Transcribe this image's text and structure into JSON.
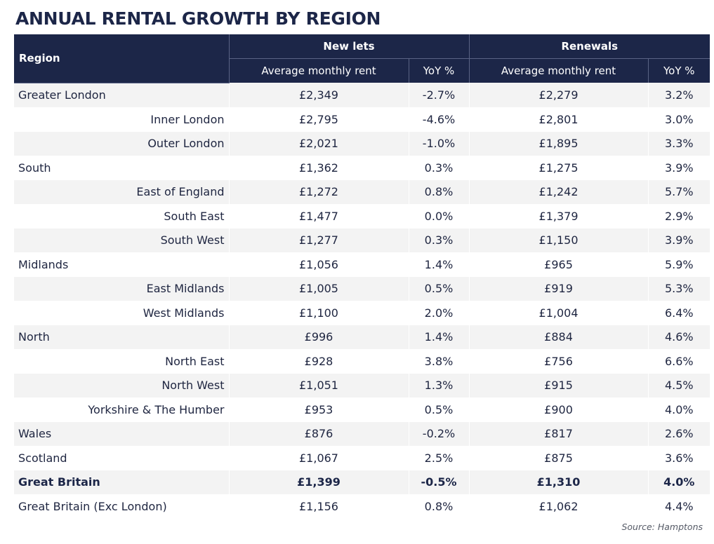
{
  "title": "ANNUAL RENTAL GROWTH BY REGION",
  "header": {
    "region": "Region",
    "new_lets": "New lets",
    "renewals": "Renewals",
    "avg_rent": "Average monthly rent",
    "yoy": "YoY %"
  },
  "rows": [
    {
      "region": "Greater London",
      "nl_rent": "£2,349",
      "nl_yoy": "-2.7%",
      "rn_rent": "£2,279",
      "rn_yoy": "3.2%"
    },
    {
      "region": "Inner London",
      "nl_rent": "£2,795",
      "nl_yoy": "-4.6%",
      "rn_rent": "£2,801",
      "rn_yoy": "3.0%"
    },
    {
      "region": "Outer London",
      "nl_rent": "£2,021",
      "nl_yoy": "-1.0%",
      "rn_rent": "£1,895",
      "rn_yoy": "3.3%"
    },
    {
      "region": "South",
      "nl_rent": "£1,362",
      "nl_yoy": "0.3%",
      "rn_rent": "£1,275",
      "rn_yoy": "3.9%"
    },
    {
      "region": "East of England",
      "nl_rent": "£1,272",
      "nl_yoy": "0.8%",
      "rn_rent": "£1,242",
      "rn_yoy": "5.7%"
    },
    {
      "region": "South East",
      "nl_rent": "£1,477",
      "nl_yoy": "0.0%",
      "rn_rent": "£1,379",
      "rn_yoy": "2.9%"
    },
    {
      "region": "South West",
      "nl_rent": "£1,277",
      "nl_yoy": "0.3%",
      "rn_rent": "£1,150",
      "rn_yoy": "3.9%"
    },
    {
      "region": "Midlands",
      "nl_rent": "£1,056",
      "nl_yoy": "1.4%",
      "rn_rent": "£965",
      "rn_yoy": "5.9%"
    },
    {
      "region": "East Midlands",
      "nl_rent": "£1,005",
      "nl_yoy": "0.5%",
      "rn_rent": "£919",
      "rn_yoy": "5.3%"
    },
    {
      "region": "West Midlands",
      "nl_rent": "£1,100",
      "nl_yoy": "2.0%",
      "rn_rent": "£1,004",
      "rn_yoy": "6.4%"
    },
    {
      "region": "North",
      "nl_rent": "£996",
      "nl_yoy": "1.4%",
      "rn_rent": "£884",
      "rn_yoy": "4.6%"
    },
    {
      "region": "North East",
      "nl_rent": "£928",
      "nl_yoy": "3.8%",
      "rn_rent": "£756",
      "rn_yoy": "6.6%"
    },
    {
      "region": "North West",
      "nl_rent": "£1,051",
      "nl_yoy": "1.3%",
      "rn_rent": "£915",
      "rn_yoy": "4.5%"
    },
    {
      "region": "Yorkshire & The Humber",
      "nl_rent": "£953",
      "nl_yoy": "0.5%",
      "rn_rent": "£900",
      "rn_yoy": "4.0%"
    },
    {
      "region": "Wales",
      "nl_rent": "£876",
      "nl_yoy": "-0.2%",
      "rn_rent": "£817",
      "rn_yoy": "2.6%"
    },
    {
      "region": "Scotland",
      "nl_rent": "£1,067",
      "nl_yoy": "2.5%",
      "rn_rent": "£875",
      "rn_yoy": "3.6%"
    },
    {
      "region": "Great Britain",
      "nl_rent": "£1,399",
      "nl_yoy": "-0.5%",
      "rn_rent": "£1,310",
      "rn_yoy": "4.0%"
    },
    {
      "region": "Great Britain (Exc London)",
      "nl_rent": "£1,156",
      "nl_yoy": "0.8%",
      "rn_rent": "£1,062",
      "rn_yoy": "4.4%"
    }
  ],
  "source": "Source: Hamptons"
}
